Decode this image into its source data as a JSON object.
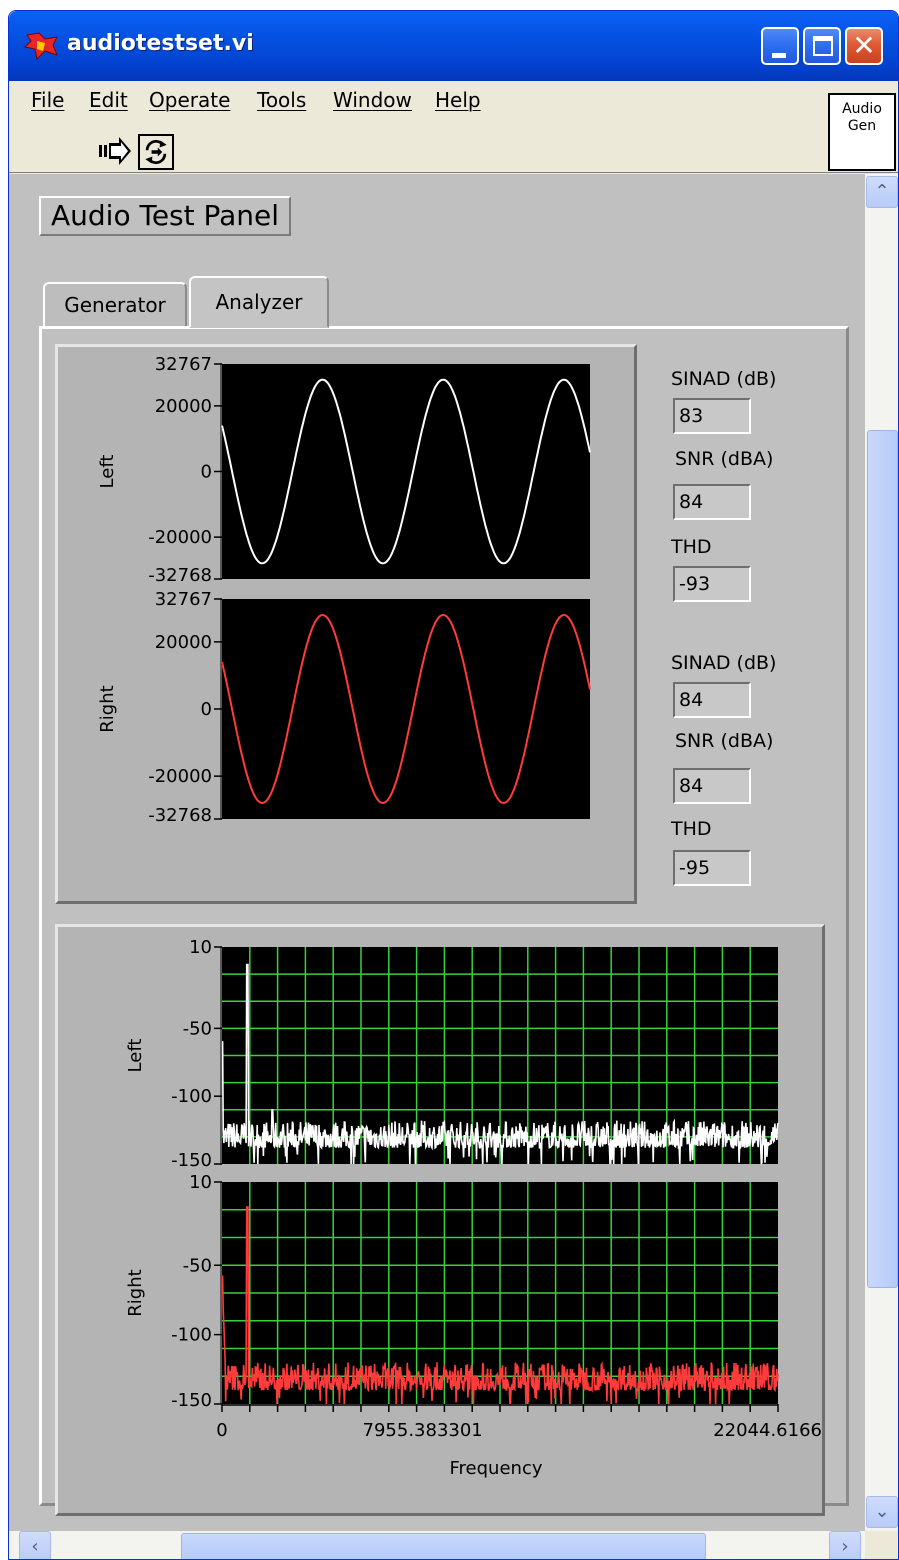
{
  "window": {
    "title": "audiotestset.vi"
  },
  "menu": {
    "items": [
      "File",
      "Edit",
      "Operate",
      "Tools",
      "Window",
      "Help"
    ]
  },
  "toolbar": {
    "run_icon": "run-arrow-icon",
    "continuous_icon": "run-continuously-icon"
  },
  "audio_gen": {
    "line1": "Audio",
    "line2": "Gen"
  },
  "panel": {
    "title": "Audio Test Panel"
  },
  "tabs": [
    {
      "label": "Generator",
      "selected": false
    },
    {
      "label": "Analyzer",
      "selected": true
    }
  ],
  "readouts": {
    "left": [
      {
        "label": "SINAD (dB)",
        "value": "83"
      },
      {
        "label": "SNR (dBA)",
        "value": "84"
      },
      {
        "label": "THD",
        "value": "-93"
      }
    ],
    "right": [
      {
        "label": "SINAD (dB)",
        "value": "84"
      },
      {
        "label": "SNR (dBA)",
        "value": "84"
      },
      {
        "label": "THD",
        "value": "-95"
      }
    ]
  },
  "colors": {
    "left_trace": "#ffffff",
    "right_trace": "#ff3b3b",
    "plot_bg": "#000000",
    "spectrum_grid": "#3ad13a"
  },
  "chart_data": [
    {
      "type": "line",
      "ylabel": "Left",
      "yticks": [
        "32767",
        "20000",
        "0",
        "-20000",
        "-32768"
      ],
      "ylim": [
        -32768,
        32767
      ],
      "series": [
        {
          "amplitude": 28000,
          "cycles": 3.05,
          "phase_deg": 150
        }
      ],
      "grid": false
    },
    {
      "type": "line",
      "ylabel": "Right",
      "yticks": [
        "32767",
        "20000",
        "0",
        "-20000",
        "-32768"
      ],
      "ylim": [
        -32768,
        32767
      ],
      "series": [
        {
          "amplitude": 28000,
          "cycles": 3.05,
          "phase_deg": 150
        }
      ],
      "grid": false
    },
    {
      "type": "line",
      "ylabel": "Left",
      "yticks": [
        "10",
        "-50",
        "-100",
        "-150"
      ],
      "ylim": [
        -150,
        10
      ],
      "xlim": [
        0,
        22044.6166
      ],
      "peaks": [
        {
          "x": 1000,
          "y": -3
        },
        {
          "x": 0,
          "y": -60
        },
        {
          "x": 2000,
          "y": -110
        }
      ],
      "noise_floor": [
        -138,
        -118
      ],
      "grid": true
    },
    {
      "type": "line",
      "ylabel": "Right",
      "yticks": [
        "10",
        "-50",
        "-100",
        "-150"
      ],
      "ylim": [
        -150,
        10
      ],
      "xlim": [
        0,
        22044.6166
      ],
      "peaks": [
        {
          "x": 1000,
          "y": -8
        },
        {
          "x": 0,
          "y": -58
        }
      ],
      "noise_floor": [
        -140,
        -120
      ],
      "grid": true,
      "xticks": [
        "0",
        "7955.383301",
        "22044.6166"
      ],
      "xlabel": "Frequency"
    }
  ]
}
